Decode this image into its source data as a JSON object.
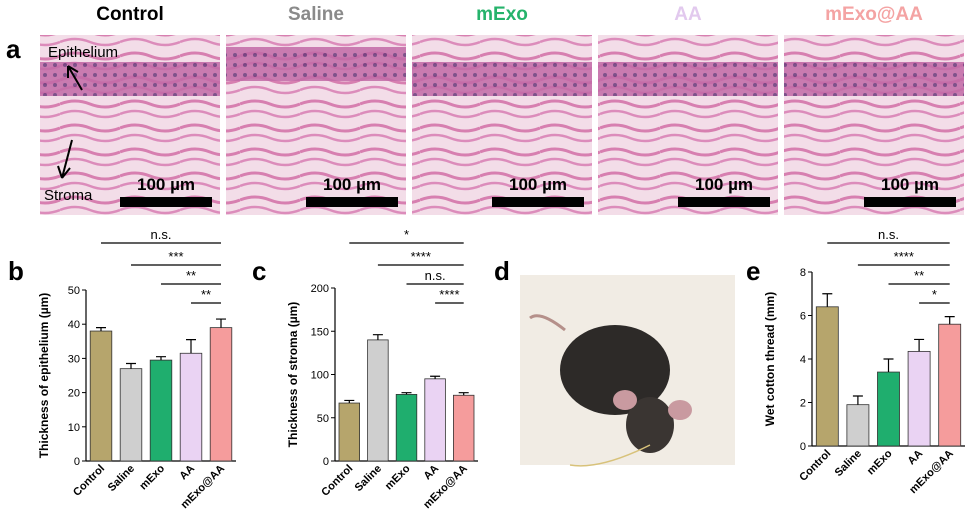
{
  "panel_labels": [
    "a",
    "b",
    "c",
    "d",
    "e"
  ],
  "panel_a": {
    "groups": [
      {
        "name": "Control",
        "color": "#000000"
      },
      {
        "name": "Saline",
        "color": "#8a8a8a"
      },
      {
        "name": "mExo",
        "color": "#25b36b"
      },
      {
        "name": "AA",
        "color": "#e2c9ee"
      },
      {
        "name": "mExo@AA",
        "color": "#f4a3a3"
      }
    ],
    "scale_bar": "100 µm",
    "annotations": [
      "Epithelium",
      "Stroma"
    ]
  },
  "chart_data": [
    {
      "type": "bar",
      "y_label": "Thickness of epithelium (µm)",
      "categories": [
        "Control",
        "Saline",
        "mExo",
        "AA",
        "mExo@AA"
      ],
      "colors": [
        "#b6a56c",
        "#cfcfcf",
        "#1fae6e",
        "#ead3f3",
        "#f59c9c"
      ],
      "values": [
        38,
        27,
        29.5,
        31.5,
        39
      ],
      "errors": [
        1,
        1.5,
        1,
        4,
        2.5
      ],
      "ylim": [
        0,
        50
      ],
      "yticks": [
        0,
        10,
        20,
        30,
        40,
        50
      ],
      "significance": [
        {
          "from": 0,
          "to": 4,
          "label": "n.s."
        },
        {
          "from": 1,
          "to": 4,
          "label": "***"
        },
        {
          "from": 2,
          "to": 4,
          "label": "**"
        },
        {
          "from": 3,
          "to": 4,
          "label": "**"
        }
      ]
    },
    {
      "type": "bar",
      "y_label": "Thickness of stroma (µm)",
      "categories": [
        "Control",
        "Saline",
        "mExo",
        "AA",
        "mExo@AA"
      ],
      "colors": [
        "#b6a56c",
        "#cfcfcf",
        "#1fae6e",
        "#ead3f3",
        "#f59c9c"
      ],
      "values": [
        67,
        140,
        77,
        95,
        76
      ],
      "errors": [
        3,
        6,
        2,
        3,
        3
      ],
      "ylim": [
        0,
        200
      ],
      "yticks": [
        0,
        50,
        100,
        150,
        200
      ],
      "significance": [
        {
          "from": 0,
          "to": 4,
          "label": "*"
        },
        {
          "from": 1,
          "to": 4,
          "label": "****"
        },
        {
          "from": 2,
          "to": 4,
          "label": "n.s."
        },
        {
          "from": 3,
          "to": 4,
          "label": "****"
        }
      ]
    },
    {
      "type": "bar",
      "y_label": "Wet cotton thread (mm)",
      "categories": [
        "Control",
        "Saline",
        "mExo",
        "AA",
        "mExo@AA"
      ],
      "colors": [
        "#b6a56c",
        "#cfcfcf",
        "#1fae6e",
        "#ead3f3",
        "#f59c9c"
      ],
      "values": [
        6.4,
        1.9,
        3.4,
        4.35,
        5.6
      ],
      "errors": [
        0.6,
        0.4,
        0.6,
        0.55,
        0.35
      ],
      "ylim": [
        0,
        8
      ],
      "yticks": [
        0,
        2,
        4,
        6,
        8
      ],
      "significance": [
        {
          "from": 0,
          "to": 4,
          "label": "n.s."
        },
        {
          "from": 1,
          "to": 4,
          "label": "****"
        },
        {
          "from": 2,
          "to": 4,
          "label": "**"
        },
        {
          "from": 3,
          "to": 4,
          "label": "*"
        }
      ]
    }
  ]
}
